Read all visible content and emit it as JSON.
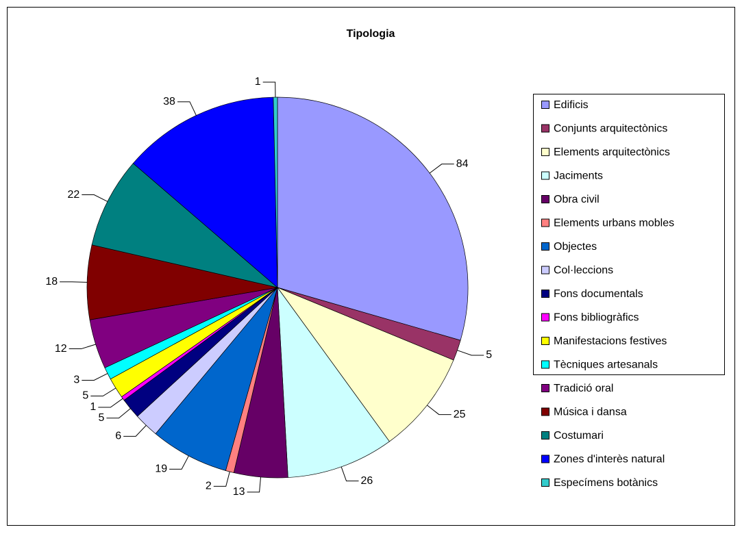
{
  "chart_data": {
    "type": "pie",
    "title": "Tipologia",
    "categories": [
      "Edificis",
      "Conjunts arquitectònics",
      "Elements arquitectònics",
      "Jaciments",
      "Obra civil",
      "Elements urbans mobles",
      "Objectes",
      "Col·leccions",
      "Fons documentals",
      "Fons bibliogràfics",
      "Manifestacions festives",
      "Tècniques artesanals",
      "Tradició oral",
      "Música i dansa",
      "Costumari",
      "Zones d'interès natural",
      "Especímens botànics"
    ],
    "values": [
      84,
      5,
      25,
      26,
      13,
      2,
      19,
      6,
      5,
      1,
      5,
      3,
      12,
      18,
      22,
      38,
      1
    ],
    "colors": [
      "#9999ff",
      "#993366",
      "#ffffcc",
      "#ccffff",
      "#660066",
      "#ff8080",
      "#0066cc",
      "#ccccff",
      "#000080",
      "#ff00ff",
      "#ffff00",
      "#00ffff",
      "#800080",
      "#800000",
      "#008080",
      "#0000ff",
      "#33cccc"
    ],
    "legend": "right"
  }
}
